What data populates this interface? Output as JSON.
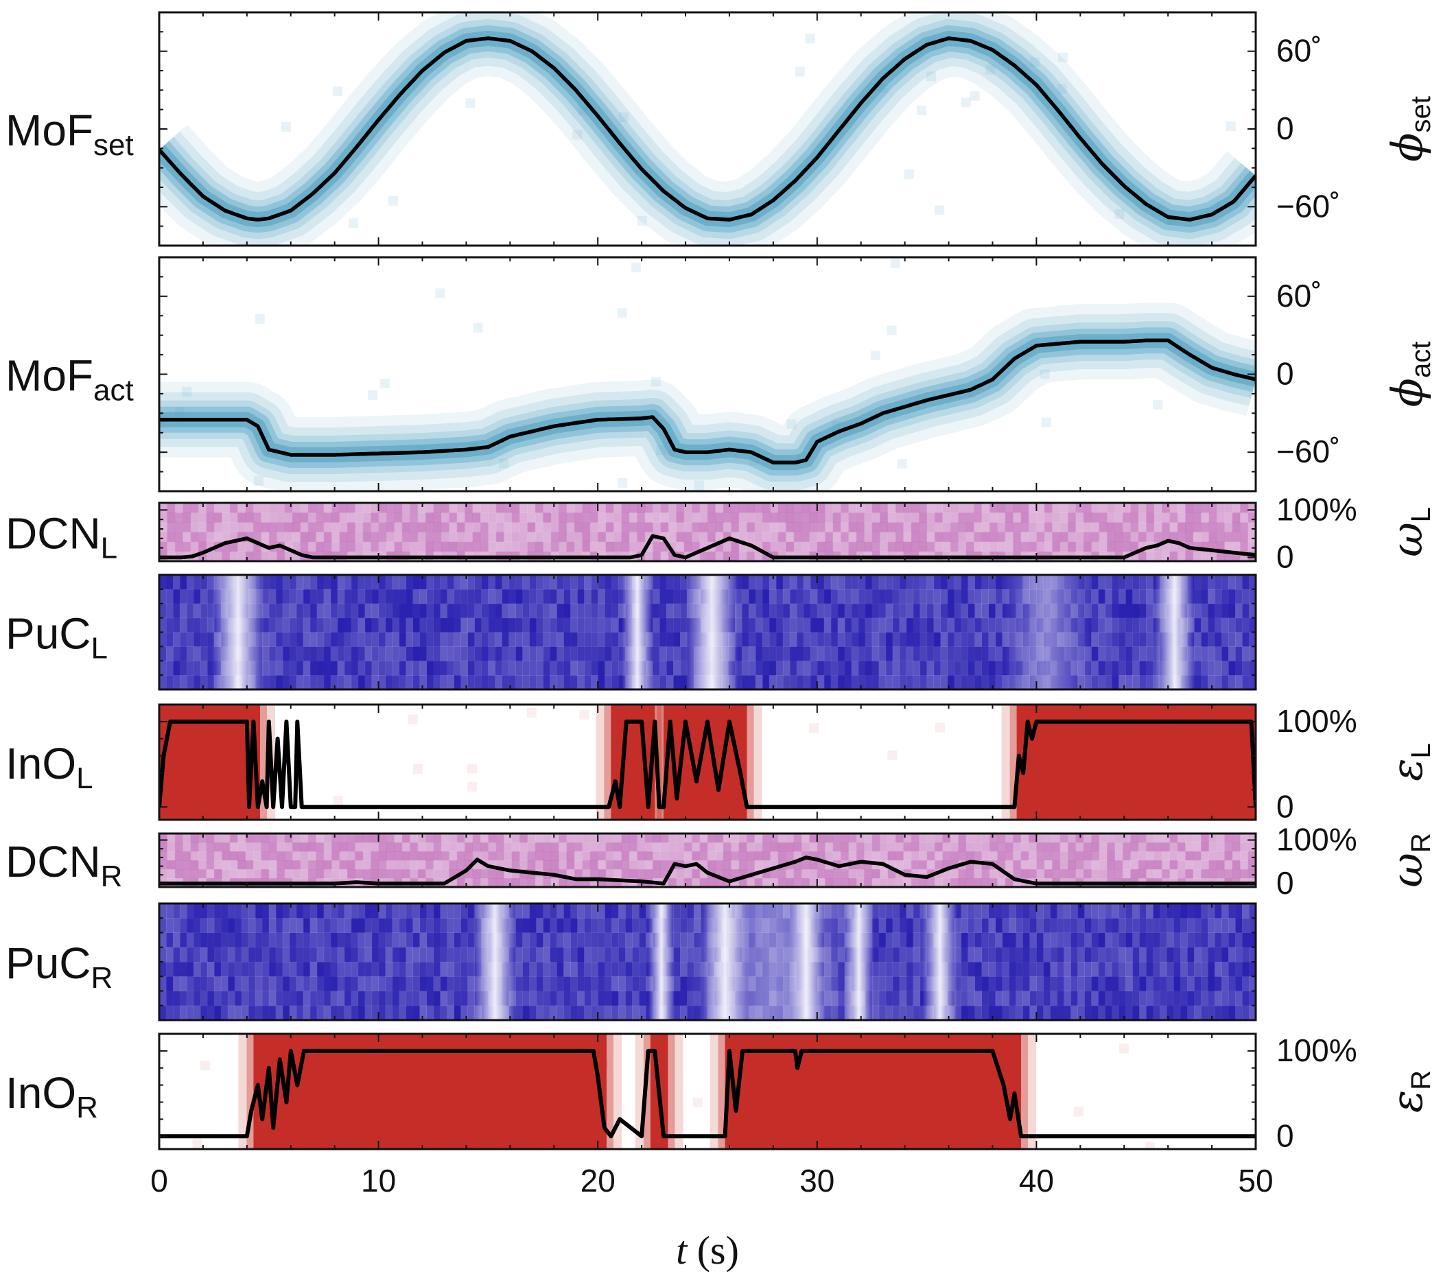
{
  "chart_data": {
    "type": "heatmap",
    "x_range": [
      0,
      50
    ],
    "x_ticks": [
      "0",
      "10",
      "20",
      "30",
      "40",
      "50"
    ],
    "x_tick_values": [
      0,
      10,
      20,
      30,
      40,
      50
    ],
    "xlabel_var": "t",
    "xlabel_unit": "(s)",
    "colors": {
      "mof": "#4a9ec0",
      "dcn": "#b04aa8",
      "puc": "#2a20b0",
      "ino": "#c42a24",
      "trace": "#000000"
    },
    "panels": [
      {
        "id": "mof_set",
        "kind": "mof",
        "label_main": "MoF",
        "label_sub": "set",
        "right_var": "ϕ",
        "right_sub": "set",
        "ylim": [
          -90,
          90
        ],
        "yticks": [
          "60˚",
          "0",
          "−60˚"
        ],
        "ytick_values": [
          60,
          0,
          -60
        ],
        "trace_t": [
          0,
          1,
          2,
          3,
          4,
          4.5,
          5,
          6,
          7,
          8,
          9,
          10,
          11,
          12,
          13,
          14,
          15,
          16,
          17,
          18,
          19,
          20,
          21,
          22,
          23,
          24,
          25,
          26,
          27,
          28,
          29,
          30,
          31,
          32,
          33,
          34,
          35,
          36,
          37,
          38,
          39,
          40,
          41,
          42,
          43,
          44,
          45,
          46,
          47,
          48,
          49,
          50
        ],
        "trace_v": [
          -16,
          -35,
          -52,
          -63,
          -69,
          -70,
          -69,
          -63,
          -50,
          -34,
          -14,
          7,
          27,
          45,
          59,
          68,
          70,
          68,
          60,
          47,
          30,
          10,
          -11,
          -31,
          -48,
          -61,
          -69,
          -70,
          -66,
          -55,
          -40,
          -22,
          -1,
          20,
          39,
          54,
          65,
          70,
          68,
          61,
          49,
          34,
          14,
          -7,
          -27,
          -44,
          -58,
          -68,
          -70,
          -66,
          -56,
          -36
        ]
      },
      {
        "id": "mof_act",
        "kind": "mof",
        "label_main": "MoF",
        "label_sub": "act",
        "right_var": "ϕ",
        "right_sub": "act",
        "ylim": [
          -90,
          90
        ],
        "yticks": [
          "60˚",
          "0",
          "−60˚"
        ],
        "ytick_values": [
          60,
          0,
          -60
        ],
        "trace_t": [
          0,
          2,
          4,
          4.5,
          5,
          6,
          8,
          10,
          12,
          14,
          15,
          16,
          18,
          20,
          22,
          22.5,
          23,
          23.5,
          24,
          25,
          26,
          27,
          28,
          29,
          29.5,
          30,
          31,
          32,
          33,
          34,
          35,
          36,
          37,
          38,
          39,
          40,
          42,
          44,
          45,
          46,
          47,
          48,
          49,
          50
        ],
        "trace_v": [
          -35,
          -35,
          -35,
          -40,
          -58,
          -62,
          -62,
          -61,
          -60,
          -58,
          -56,
          -48,
          -40,
          -35,
          -34,
          -33,
          -42,
          -58,
          -60,
          -60,
          -58,
          -60,
          -68,
          -68,
          -66,
          -52,
          -44,
          -38,
          -30,
          -25,
          -20,
          -16,
          -12,
          -4,
          12,
          22,
          25,
          25,
          26,
          26,
          15,
          5,
          0,
          -4
        ]
      },
      {
        "id": "dcn_l",
        "kind": "dcn",
        "label_main": "DCN",
        "label_sub": "L",
        "right_var": "ω",
        "right_sub": "L",
        "ylim": [
          -8,
          115
        ],
        "yticks": [
          "100%",
          "0"
        ],
        "ytick_values": [
          100,
          0
        ],
        "trace_t": [
          0,
          1,
          1.5,
          2,
          3,
          4,
          4.5,
          5,
          5.5,
          6,
          6.5,
          7,
          8,
          20,
          21.5,
          22,
          22.5,
          23,
          23.5,
          24,
          25,
          26,
          27,
          28,
          40,
          44,
          44.5,
          45,
          45.5,
          46,
          46.5,
          47,
          48,
          49,
          50
        ],
        "trace_v": [
          0,
          0,
          2,
          10,
          30,
          40,
          30,
          20,
          25,
          15,
          5,
          0,
          0,
          0,
          0,
          5,
          45,
          40,
          5,
          0,
          20,
          40,
          25,
          0,
          0,
          0,
          10,
          20,
          25,
          35,
          30,
          20,
          15,
          10,
          5
        ]
      },
      {
        "id": "puc_l",
        "kind": "puc",
        "label_main": "PuC",
        "label_sub": "L",
        "light_bands": [
          [
            3.6,
            1.2
          ],
          [
            21.8,
            0.7
          ],
          [
            25.2,
            1.2
          ],
          [
            46.3,
            0.9
          ],
          [
            40.5,
            2.0
          ]
        ]
      },
      {
        "id": "ino_l",
        "kind": "ino",
        "label_main": "InO",
        "label_sub": "L",
        "right_var": "ε",
        "right_sub": "L",
        "ylim": [
          -15,
          120
        ],
        "yticks": [
          "100%",
          "0"
        ],
        "ytick_values": [
          100,
          0
        ],
        "red_regions": [
          [
            0,
            4.6
          ],
          [
            20.6,
            22.6
          ],
          [
            23,
            26.8
          ],
          [
            39.1,
            50
          ]
        ],
        "trace_t": [
          0,
          0.2,
          0.5,
          1,
          4,
          4.1,
          4.3,
          4.5,
          4.7,
          4.9,
          5,
          5.2,
          5.4,
          5.6,
          5.8,
          6,
          6.2,
          6.3,
          6.5,
          6.6,
          7,
          20,
          20.5,
          20.8,
          21,
          21.3,
          21.6,
          22,
          22.3,
          22.6,
          22.8,
          23,
          23.3,
          23.6,
          24,
          24.5,
          25,
          25.5,
          26,
          26.5,
          26.8,
          27,
          39,
          39.2,
          39.4,
          39.6,
          39.8,
          40,
          49.8,
          50
        ],
        "trace_v": [
          0,
          60,
          100,
          100,
          100,
          0,
          100,
          0,
          30,
          0,
          100,
          0,
          80,
          0,
          100,
          0,
          0,
          100,
          0,
          0,
          0,
          0,
          0,
          30,
          0,
          100,
          100,
          100,
          0,
          100,
          0,
          0,
          100,
          10,
          100,
          30,
          100,
          20,
          100,
          40,
          0,
          0,
          0,
          60,
          40,
          100,
          80,
          100,
          100,
          0
        ]
      },
      {
        "id": "dcn_r",
        "kind": "dcn",
        "label_main": "DCN",
        "label_sub": "R",
        "right_var": "ω",
        "right_sub": "R",
        "ylim": [
          -8,
          115
        ],
        "yticks": [
          "100%",
          "0"
        ],
        "ytick_values": [
          100,
          0
        ],
        "trace_t": [
          0,
          8,
          9,
          10,
          13,
          14,
          14.5,
          15,
          16,
          17,
          18,
          19,
          20,
          22,
          23,
          23.5,
          24,
          24.5,
          25,
          26,
          27,
          28,
          29,
          29.5,
          30,
          31,
          32,
          33,
          34,
          35,
          36,
          37,
          38,
          39,
          39.5,
          40,
          50
        ],
        "trace_v": [
          0,
          0,
          3,
          0,
          0,
          30,
          55,
          40,
          30,
          25,
          20,
          10,
          10,
          5,
          0,
          45,
          40,
          45,
          25,
          5,
          20,
          35,
          50,
          60,
          55,
          40,
          50,
          45,
          20,
          15,
          35,
          50,
          45,
          10,
          5,
          0,
          0
        ]
      },
      {
        "id": "puc_r",
        "kind": "puc",
        "label_main": "PuC",
        "label_sub": "R",
        "light_bands": [
          [
            15.3,
            1.0
          ],
          [
            22.9,
            0.6
          ],
          [
            25.8,
            1.0
          ],
          [
            29.5,
            0.8
          ],
          [
            31.9,
            0.7
          ],
          [
            35.6,
            0.8
          ],
          [
            28,
            4.0
          ]
        ]
      },
      {
        "id": "ino_r",
        "kind": "ino",
        "label_main": "InO",
        "label_sub": "R",
        "right_var": "ε",
        "right_sub": "R",
        "ylim": [
          -15,
          120
        ],
        "yticks": [
          "100%",
          "0"
        ],
        "ytick_values": [
          100,
          0
        ],
        "red_regions": [
          [
            4.3,
            20.4
          ],
          [
            22.4,
            23.2
          ],
          [
            25.8,
            39.3
          ]
        ],
        "trace_t": [
          0,
          0.1,
          4,
          4.2,
          4.5,
          4.7,
          5,
          5.2,
          5.5,
          5.8,
          6,
          6.3,
          6.6,
          7,
          19.8,
          20,
          20.3,
          20.6,
          21,
          22,
          22.3,
          22.6,
          23,
          23.2,
          25.8,
          26,
          26.3,
          26.6,
          27,
          29,
          29.1,
          29.3,
          38,
          38.5,
          38.8,
          39,
          39.3,
          39.6,
          50
        ],
        "trace_v": [
          0,
          0,
          0,
          30,
          60,
          20,
          80,
          10,
          90,
          40,
          100,
          60,
          100,
          100,
          100,
          70,
          10,
          0,
          20,
          0,
          100,
          100,
          0,
          0,
          0,
          100,
          30,
          100,
          100,
          100,
          80,
          100,
          100,
          60,
          20,
          50,
          0,
          0,
          0
        ]
      }
    ]
  }
}
